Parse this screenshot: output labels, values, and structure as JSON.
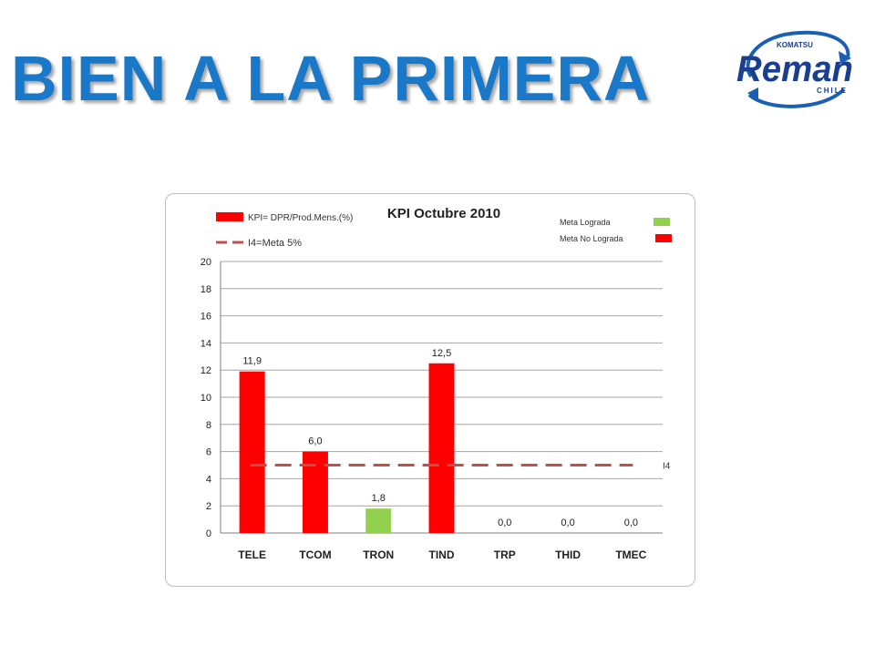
{
  "slide": {
    "title": "BIEN A LA PRIMERA",
    "logo": {
      "top_text": "KOMATSU",
      "main_text": "Reman",
      "bottom_text": "CHILE"
    }
  },
  "chart_data": {
    "type": "bar",
    "title": "KPI Octubre 2010",
    "categories": [
      "TELE",
      "TCOM",
      "TRON",
      "TIND",
      "TRP",
      "THID",
      "TMEC"
    ],
    "values": [
      11.9,
      6.0,
      1.8,
      12.5,
      0.0,
      0.0,
      0.0
    ],
    "data_labels": [
      "11,9",
      "6,0",
      "1,8",
      "12,5",
      "0,0",
      "0,0",
      "0,0"
    ],
    "status": [
      "no_lograda",
      "no_lograda",
      "lograda",
      "no_lograda",
      "no_lograda",
      "no_lograda",
      "no_lograda"
    ],
    "ylim": [
      0,
      20
    ],
    "yticks": [
      0,
      2,
      4,
      6,
      8,
      10,
      12,
      14,
      16,
      18,
      20
    ],
    "grid": true,
    "target_line": {
      "value": 5,
      "label": "I4"
    },
    "legend_left": [
      {
        "label": "KPI= DPR/Prod.Mens.(%)",
        "type": "bar",
        "color": "#ff0000"
      },
      {
        "label": "I4=Meta 5%",
        "type": "dashed-line",
        "color": "#c0504d"
      }
    ],
    "legend_right": [
      {
        "label": "Meta Lograda",
        "color": "#92d050"
      },
      {
        "label": "Meta No Lograda",
        "color": "#ff0000"
      }
    ],
    "colors": {
      "no_lograda": "#ff0000",
      "lograda": "#92d050",
      "target": "#c0504d",
      "grid": "#a6a6a6"
    }
  }
}
